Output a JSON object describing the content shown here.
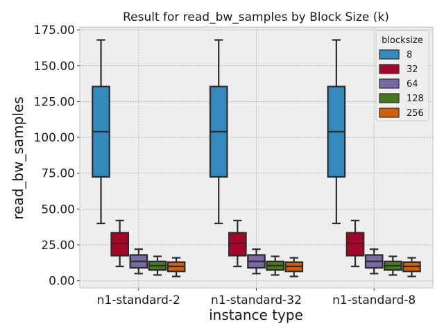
{
  "chart_data": {
    "type": "box",
    "title": "Result for read_bw_samples by Block Size (k)",
    "xlabel": "instance type",
    "ylabel": "read_bw_samples",
    "categories": [
      "n1-standard-2",
      "n1-standard-32",
      "n1-standard-8"
    ],
    "ylim": [
      -5,
      177
    ],
    "yticks": [
      "0.00",
      "25.00",
      "50.00",
      "75.00",
      "100.00",
      "125.00",
      "150.00",
      "175.00"
    ],
    "ytick_values": [
      0,
      25,
      50,
      75,
      100,
      125,
      150,
      175
    ],
    "grid": true,
    "legend_position": "top-right",
    "legend_title": "blocksize",
    "series": [
      {
        "name": "8",
        "color": "#348abd",
        "boxes": [
          {
            "whislo": 40,
            "q1": 72.5,
            "med": 104,
            "q3": 135.5,
            "whishi": 168
          },
          {
            "whislo": 40,
            "q1": 72.5,
            "med": 104,
            "q3": 135.5,
            "whishi": 168
          },
          {
            "whislo": 40,
            "q1": 72.5,
            "med": 104,
            "q3": 135.5,
            "whishi": 168
          }
        ]
      },
      {
        "name": "32",
        "color": "#a60628",
        "boxes": [
          {
            "whislo": 10,
            "q1": 17.5,
            "med": 26,
            "q3": 33.5,
            "whishi": 42
          },
          {
            "whislo": 10,
            "q1": 17.5,
            "med": 26,
            "q3": 33.5,
            "whishi": 42
          },
          {
            "whislo": 10,
            "q1": 17.5,
            "med": 26,
            "q3": 33.5,
            "whishi": 42
          }
        ]
      },
      {
        "name": "64",
        "color": "#7a68a6",
        "boxes": [
          {
            "whislo": 5,
            "q1": 9,
            "med": 13.5,
            "q3": 18,
            "whishi": 22
          },
          {
            "whislo": 5,
            "q1": 9,
            "med": 13.5,
            "q3": 18,
            "whishi": 22
          },
          {
            "whislo": 5,
            "q1": 9,
            "med": 13.5,
            "q3": 18,
            "whishi": 22
          }
        ]
      },
      {
        "name": "128",
        "color": "#467821",
        "boxes": [
          {
            "whislo": 4,
            "q1": 7.5,
            "med": 10.5,
            "q3": 13.5,
            "whishi": 17
          },
          {
            "whislo": 4,
            "q1": 7.5,
            "med": 10.5,
            "q3": 13.5,
            "whishi": 17
          },
          {
            "whislo": 4,
            "q1": 7.5,
            "med": 10.5,
            "q3": 13.5,
            "whishi": 17
          }
        ]
      },
      {
        "name": "256",
        "color": "#d55e00",
        "boxes": [
          {
            "whislo": 3,
            "q1": 6.5,
            "med": 10,
            "q3": 13,
            "whishi": 16
          },
          {
            "whislo": 3,
            "q1": 6.5,
            "med": 10,
            "q3": 13,
            "whishi": 16
          },
          {
            "whislo": 3,
            "q1": 6.5,
            "med": 10,
            "q3": 13,
            "whishi": 16
          }
        ]
      }
    ]
  }
}
